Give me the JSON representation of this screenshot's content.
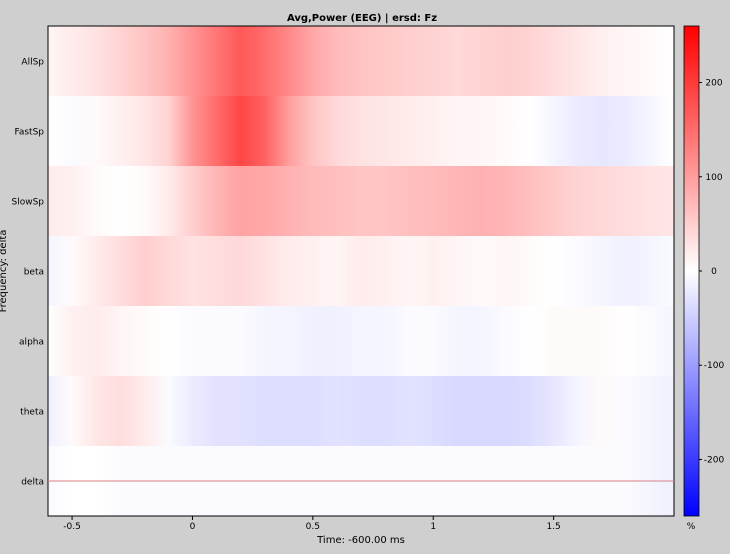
{
  "figure": {
    "title": "Avg,Power (EEG) | ersd: Fz",
    "ylabel": "Frequency: delta",
    "xlabel": "Time: -600.00 ms",
    "colorbar_unit": "%"
  },
  "colors": {
    "background": "#cfcfcf",
    "positive": "#ff0000",
    "neutral": "#ffffff",
    "negative": "#0000ff",
    "cursor_line": "#d98080"
  },
  "chart_data": {
    "type": "heatmap",
    "title": "Avg,Power (EEG) | ersd: Fz",
    "xlabel": "Time: -600.00 ms",
    "ylabel": "Frequency: delta",
    "rows": [
      "AllSp",
      "FastSp",
      "SlowSp",
      "beta",
      "alpha",
      "theta",
      "delta"
    ],
    "xlim": [
      -0.6,
      2.0
    ],
    "x_ticks": [
      -0.5,
      0,
      0.5,
      1,
      1.5
    ],
    "x_tick_labels": [
      "-0.5",
      "0",
      "0.5",
      "1",
      "1.5"
    ],
    "colorbar": {
      "range": [
        -260,
        260
      ],
      "ticks": [
        200,
        100,
        0,
        -100,
        -200
      ],
      "tick_labels": [
        "200",
        "100",
        "0",
        "-100",
        "-200"
      ],
      "unit": "%"
    },
    "time_points": [
      -0.6,
      -0.5,
      -0.4,
      -0.3,
      -0.2,
      -0.1,
      0.0,
      0.1,
      0.2,
      0.3,
      0.4,
      0.5,
      0.6,
      0.7,
      0.8,
      0.9,
      1.0,
      1.1,
      1.2,
      1.3,
      1.4,
      1.5,
      1.6,
      1.7,
      1.8,
      1.9,
      2.0
    ],
    "values": [
      [
        10,
        20,
        30,
        45,
        60,
        80,
        110,
        140,
        170,
        150,
        120,
        90,
        70,
        60,
        55,
        50,
        45,
        40,
        45,
        50,
        45,
        35,
        25,
        15,
        10,
        5,
        0
      ],
      [
        0,
        -5,
        5,
        15,
        25,
        45,
        110,
        150,
        190,
        160,
        100,
        60,
        40,
        30,
        25,
        20,
        15,
        10,
        10,
        5,
        0,
        -10,
        -20,
        -25,
        -20,
        -10,
        0
      ],
      [
        20,
        15,
        5,
        0,
        5,
        20,
        50,
        75,
        95,
        90,
        80,
        70,
        65,
        60,
        60,
        65,
        70,
        75,
        80,
        75,
        65,
        55,
        45,
        40,
        35,
        30,
        25
      ],
      [
        -10,
        5,
        20,
        35,
        50,
        40,
        30,
        35,
        40,
        30,
        20,
        15,
        10,
        20,
        15,
        10,
        15,
        10,
        5,
        10,
        5,
        0,
        -5,
        -10,
        -15,
        -10,
        -5
      ],
      [
        0,
        15,
        20,
        10,
        5,
        0,
        -5,
        -5,
        -5,
        -10,
        -10,
        -15,
        -15,
        -10,
        -10,
        -5,
        -5,
        -10,
        -10,
        -5,
        0,
        5,
        5,
        5,
        0,
        -5,
        -10
      ],
      [
        -15,
        5,
        25,
        35,
        20,
        -5,
        -20,
        -30,
        -30,
        -35,
        -35,
        -35,
        -30,
        -35,
        -35,
        -30,
        -35,
        -40,
        -40,
        -40,
        -35,
        -25,
        -10,
        5,
        -5,
        -10,
        -15
      ],
      [
        -5,
        0,
        0,
        -5,
        -5,
        -5,
        -5,
        -5,
        -5,
        -5,
        -5,
        -5,
        -5,
        -5,
        -5,
        -5,
        -5,
        -5,
        -5,
        -5,
        -5,
        -5,
        -5,
        -5,
        -5,
        -10,
        -15
      ]
    ],
    "cursor_line": {
      "row": "delta"
    }
  }
}
